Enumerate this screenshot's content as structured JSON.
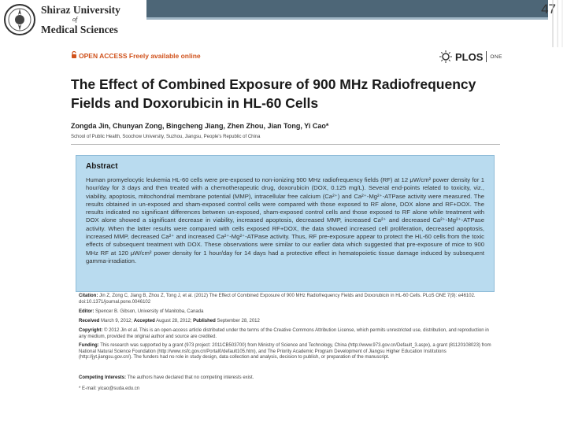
{
  "header": {
    "university_line1": "Shiraz University",
    "university_line2": "of",
    "university_line3": "Medical Sciences",
    "page_number": "47",
    "colors": {
      "bar_dark": "#4d6677",
      "bar_light": "#9fb5c4",
      "abstract_bg": "#b9dbef",
      "open_access": "#d0521c"
    }
  },
  "article": {
    "open_access": "OPEN ACCESS Freely available online",
    "journal_logo": "PLOS",
    "journal_sub": "ONE",
    "title": "The Effect of Combined Exposure of 900 MHz Radiofrequency Fields and Doxorubicin in HL-60 Cells",
    "authors": "Zongda Jin, Chunyan Zong, Bingcheng Jiang, Zhen Zhou, Jian Tong, Yi Cao*",
    "affiliation": "School of Public Health, Soochow University, Suzhou, Jiangsu, People's Republic of China",
    "abstract_heading": "Abstract",
    "abstract_text": "Human promyelocytic leukemia HL-60 cells were pre-exposed to non-ionizing 900 MHz radiofrequency fields (RF) at 12 μW/cm² power density for 1 hour/day for 3 days and then treated with a chemotherapeutic drug, doxorubicin (DOX, 0.125 mg/L). Several end-points related to toxicity, viz., viability, apoptosis, mitochondrial membrane potential (MMP), intracellular free calcium (Ca²⁺) and Ca²⁺-Mg²⁺-ATPase activity were measured. The results obtained in un-exposed and sham-exposed control cells were compared with those exposed to RF alone, DOX alone and RF+DOX. The results indicated no significant differences between un-exposed, sham-exposed control cells and those exposed to RF alone while treatment with DOX alone showed a significant decrease in viability, increased apoptosis, decreased MMP, increased Ca²⁺ and decreased Ca²⁺-Mg²⁺-ATPase activity. When the latter results were compared with cells exposed RF+DOX, the data showed increased cell proliferation, decreased apoptosis, increased MMP, decreased Ca²⁺ and increased Ca²⁺-Mg²⁺-ATPase activity. Thus, RF pre-exposure appear to protect the HL-60 cells from the toxic effects of subsequent treatment with DOX. These observations were similar to our earlier data which suggested that pre-exposure of mice to 900 MHz RF at 120 μW/cm² power density for 1 hour/day for 14 days had a protective effect in hematopoietic tissue damage induced by subsequent gamma-irradiation.",
    "citation_label": "Citation:",
    "citation_text": "Jin Z, Zong C, Jiang B, Zhou Z, Tong J, et al. (2012) The Effect of Combined Exposure of 900 MHz Radiofrequency Fields and Doxorubicin in HL-60 Cells. PLoS ONE 7(9): e46102. doi:10.1371/journal.pone.0046102",
    "editor_label": "Editor:",
    "editor_text": "Spencer B. Gibson, University of Manitoba, Canada",
    "received_label": "Received",
    "received_text": "March 9, 2012;",
    "accepted_label": "Accepted",
    "accepted_text": "August 28, 2012;",
    "published_label": "Published",
    "published_text": "September 28, 2012",
    "copyright_label": "Copyright:",
    "copyright_text": "© 2012 Jin et al. This is an open-access article distributed under the terms of the Creative Commons Attribution License, which permits unrestricted use, distribution, and reproduction in any medium, provided the original author and source are credited.",
    "funding_label": "Funding:",
    "funding_text": "This research was supported by a grant (973 project: 2011CB503700) from Ministry of Science and Technology, China (http://www.973.gov.cn/Default_3.aspx), a grant (81120108023) from National Natural Science Foundation (http://www.nsfc.gov.cn/Portal0/default105.htm), and The Priority Academic Program Development of Jiangsu Higher Education Institutions (http://jyt.jiangsu.gov.cn/). The funders had no role in study design, data collection and analysis, decision to publish, or preparation of the manuscript.",
    "competing_label": "Competing Interests:",
    "competing_text": "The authors have declared that no competing interests exist.",
    "email": "* E-mail: yicao@suda.edu.cn"
  }
}
